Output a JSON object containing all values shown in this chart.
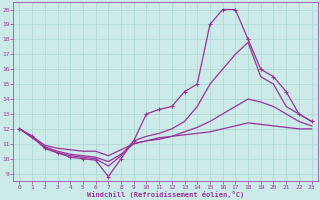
{
  "bg_color": "#cceae7",
  "line_color": "#993399",
  "grid_color": "#aad8d5",
  "xlabel": "Windchill (Refroidissement éolien,°C)",
  "ylim": [
    8.5,
    20.5
  ],
  "xlim": [
    -0.5,
    23.5
  ],
  "yticks": [
    9,
    10,
    11,
    12,
    13,
    14,
    15,
    16,
    17,
    18,
    19,
    20
  ],
  "xticks": [
    0,
    1,
    2,
    3,
    4,
    5,
    6,
    7,
    8,
    9,
    10,
    11,
    12,
    13,
    14,
    15,
    16,
    17,
    18,
    19,
    20,
    21,
    22,
    23
  ],
  "line1_x": [
    0,
    1,
    2,
    3,
    4,
    5,
    6,
    7,
    8,
    9,
    10,
    11,
    12,
    13,
    14,
    15,
    16,
    17,
    18,
    19,
    20,
    21,
    22,
    23
  ],
  "line1_y": [
    12.0,
    11.5,
    10.7,
    10.4,
    10.1,
    10.0,
    9.9,
    8.8,
    10.0,
    11.2,
    13.0,
    13.3,
    13.5,
    14.5,
    15.0,
    19.0,
    20.0,
    20.0,
    18.0,
    16.0,
    15.5,
    14.5,
    13.0,
    12.5
  ],
  "line2_x": [
    0,
    1,
    2,
    3,
    4,
    5,
    6,
    7,
    8,
    9,
    10,
    11,
    12,
    13,
    14,
    15,
    16,
    17,
    18,
    19,
    20,
    21,
    22,
    23
  ],
  "line2_y": [
    12.0,
    11.5,
    10.7,
    10.4,
    10.2,
    10.1,
    10.0,
    9.5,
    10.2,
    11.2,
    11.5,
    11.7,
    12.0,
    12.5,
    13.5,
    15.0,
    16.0,
    17.0,
    17.8,
    15.5,
    15.0,
    13.5,
    13.0,
    12.5
  ],
  "line3_x": [
    0,
    1,
    2,
    3,
    4,
    5,
    6,
    7,
    8,
    9,
    10,
    11,
    12,
    13,
    14,
    15,
    16,
    17,
    18,
    19,
    20,
    21,
    22,
    23
  ],
  "line3_y": [
    12.0,
    11.4,
    10.8,
    10.5,
    10.3,
    10.2,
    10.1,
    9.8,
    10.3,
    11.0,
    11.2,
    11.4,
    11.5,
    11.8,
    12.1,
    12.5,
    13.0,
    13.5,
    14.0,
    13.8,
    13.5,
    13.0,
    12.5,
    12.2
  ],
  "line4_x": [
    0,
    1,
    2,
    3,
    4,
    5,
    6,
    7,
    8,
    9,
    10,
    11,
    12,
    13,
    14,
    15,
    16,
    17,
    18,
    19,
    20,
    21,
    22,
    23
  ],
  "line4_y": [
    12.0,
    11.5,
    10.9,
    10.7,
    10.6,
    10.5,
    10.5,
    10.2,
    10.6,
    11.0,
    11.2,
    11.3,
    11.5,
    11.6,
    11.7,
    11.8,
    12.0,
    12.2,
    12.4,
    12.3,
    12.2,
    12.1,
    12.0,
    12.0
  ]
}
